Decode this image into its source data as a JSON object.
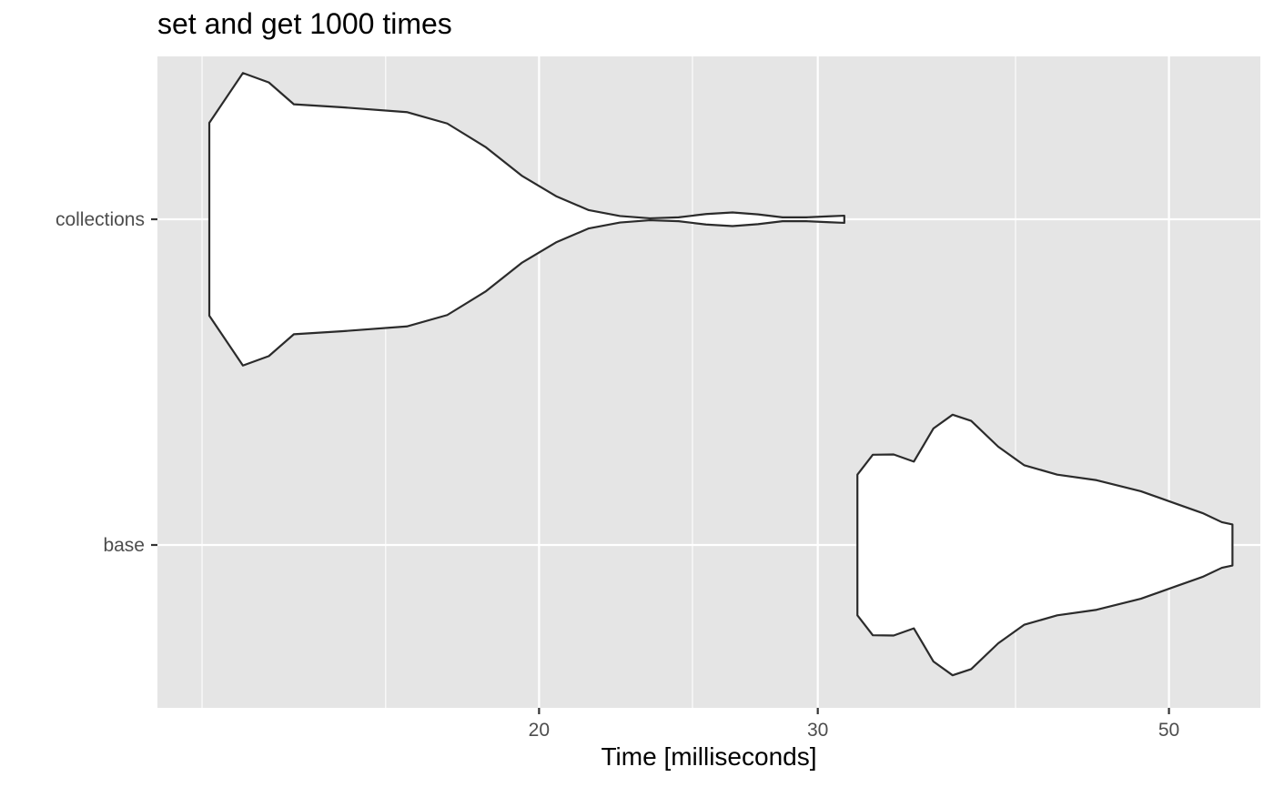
{
  "chart_data": {
    "type": "violin",
    "title": "set and get 1000 times",
    "xlabel": "Time [milliseconds]",
    "ylabel": "",
    "x_scale": "log10",
    "xlim": [
      11.48,
      57.11
    ],
    "x_ticks": [
      20,
      30,
      50
    ],
    "x_minor_ticks": [
      12.25,
      16,
      25,
      40
    ],
    "categories": [
      "collections",
      "base"
    ],
    "colors": {
      "panel": "#e5e5e5",
      "grid": "#ffffff",
      "fill": "#ffffff",
      "outline": "#2b2b2b",
      "axis_text": "#4d4d4d"
    },
    "series": [
      {
        "category": "collections",
        "half_width": [
          [
            12.38,
            0.296
          ],
          [
            13.0,
            0.449
          ],
          [
            13.5,
            0.42
          ],
          [
            14.0,
            0.353
          ],
          [
            15.0,
            0.344
          ],
          [
            16.5,
            0.329
          ],
          [
            17.5,
            0.294
          ],
          [
            18.5,
            0.222
          ],
          [
            19.5,
            0.134
          ],
          [
            20.5,
            0.071
          ],
          [
            21.5,
            0.028
          ],
          [
            22.5,
            0.01
          ],
          [
            23.5,
            0.003
          ],
          [
            24.5,
            0.006
          ],
          [
            25.5,
            0.016
          ],
          [
            26.5,
            0.021
          ],
          [
            27.5,
            0.015
          ],
          [
            28.5,
            0.006
          ],
          [
            29.5,
            0.006
          ],
          [
            30.5,
            0.009
          ],
          [
            31.18,
            0.011
          ]
        ]
      },
      {
        "category": "base",
        "half_width": [
          [
            31.78,
            0.216
          ],
          [
            32.5,
            0.277
          ],
          [
            33.5,
            0.278
          ],
          [
            34.5,
            0.256
          ],
          [
            35.5,
            0.358
          ],
          [
            36.5,
            0.4
          ],
          [
            37.5,
            0.381
          ],
          [
            39.0,
            0.302
          ],
          [
            40.5,
            0.245
          ],
          [
            42.5,
            0.216
          ],
          [
            45.0,
            0.199
          ],
          [
            48.0,
            0.165
          ],
          [
            50.5,
            0.127
          ],
          [
            52.5,
            0.098
          ],
          [
            54.0,
            0.07
          ],
          [
            54.84,
            0.063
          ]
        ]
      }
    ]
  }
}
